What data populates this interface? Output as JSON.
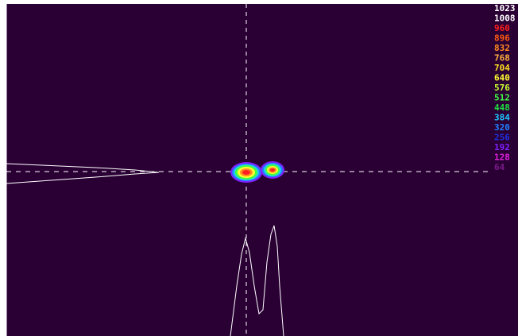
{
  "legend": [
    {
      "label": "1023",
      "color": "#ffffff"
    },
    {
      "label": "1008",
      "color": "#ffffff"
    },
    {
      "label": "960",
      "color": "#ff2020"
    },
    {
      "label": "896",
      "color": "#ff5a10"
    },
    {
      "label": "832",
      "color": "#ff8c20"
    },
    {
      "label": "768",
      "color": "#ffb040"
    },
    {
      "label": "704",
      "color": "#ffe020"
    },
    {
      "label": "640",
      "color": "#ffff30"
    },
    {
      "label": "576",
      "color": "#c8ff30"
    },
    {
      "label": "512",
      "color": "#40ff40"
    },
    {
      "label": "448",
      "color": "#20e040"
    },
    {
      "label": "384",
      "color": "#20c8ff"
    },
    {
      "label": "320",
      "color": "#2080ff"
    },
    {
      "label": "256",
      "color": "#2030e0"
    },
    {
      "label": "192",
      "color": "#8020ff"
    },
    {
      "label": "128",
      "color": "#e020e0"
    },
    {
      "label": "64",
      "color": "#7a1a8a"
    }
  ]
}
